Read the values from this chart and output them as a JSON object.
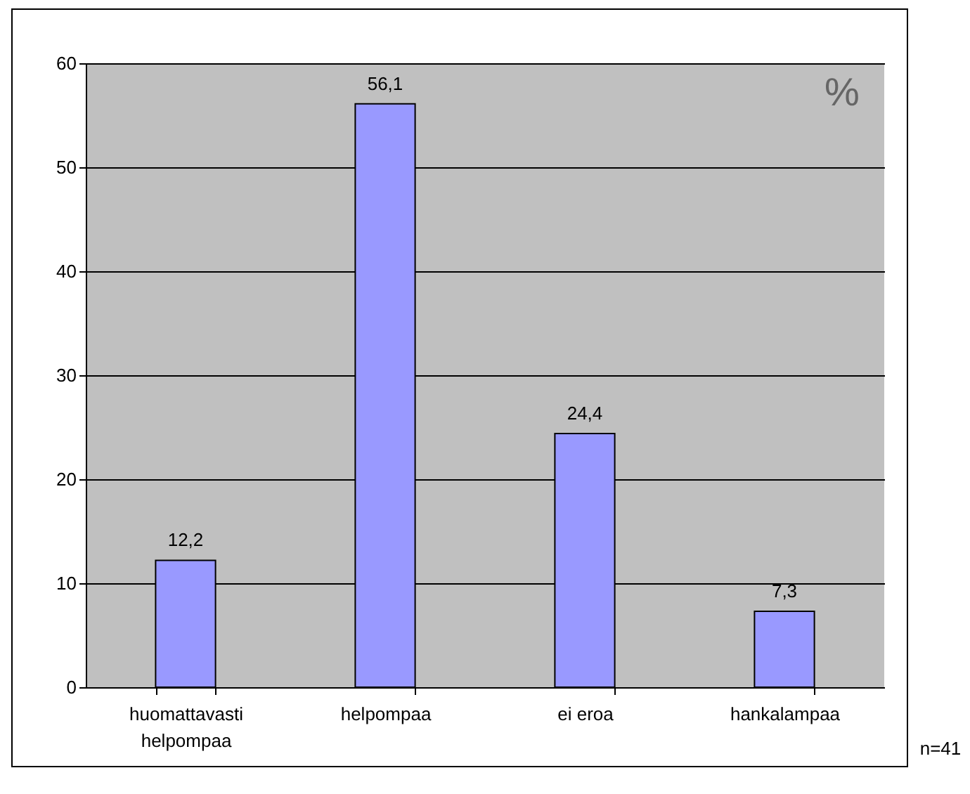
{
  "chart_data": {
    "type": "bar",
    "categories": [
      "huomattavasti helpompaa",
      "helpompaa",
      "ei eroa",
      "hankalampaa"
    ],
    "values": [
      12.2,
      56.1,
      24.4,
      7.3
    ],
    "color": "#9999ff",
    "value_labels": [
      "12,2",
      "56,1",
      "24,4",
      "7,3"
    ],
    "ylim": [
      0,
      60
    ],
    "yticks": [
      0,
      10,
      20,
      30,
      40,
      50,
      60
    ],
    "grid": "y",
    "annotations": [
      "%",
      "n=41"
    ]
  }
}
